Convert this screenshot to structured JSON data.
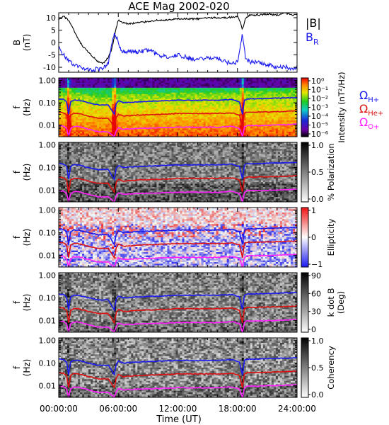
{
  "chart_data": {
    "type": "line",
    "title": "ACE Mag 2002-020",
    "xlabel": "Time (UT)",
    "x_ticks": [
      "00:00:00",
      "06:00:00",
      "12:00:00",
      "18:00:00",
      "24:00:00"
    ],
    "x_tick_hours": [
      0,
      6,
      12,
      18,
      24
    ],
    "xlim_hours": [
      0,
      24
    ],
    "panels": [
      {
        "name": "field",
        "ylabel_top": "B",
        "ylabel_bottom": "(nT)",
        "ylim": [
          -12,
          12
        ],
        "y_ticks": [
          10,
          5,
          0,
          -5,
          -10
        ],
        "legend": [
          {
            "label": "|B|",
            "color": "#000000"
          },
          {
            "label": "B",
            "sub": "R",
            "color": "#1a1aee"
          }
        ],
        "series": [
          {
            "color": "#000000",
            "x": [
              0,
              0.5,
              1,
              1.5,
              2,
              2.5,
              3,
              3.5,
              4,
              4.5,
              5,
              5.3,
              5.6,
              5.8,
              6,
              6.5,
              7,
              8,
              9,
              10,
              11,
              12,
              13,
              14,
              15,
              16,
              17,
              18,
              18.3,
              18.5,
              18.8,
              19.2,
              20,
              21,
              22,
              23,
              23.5,
              24
            ],
            "y": [
              9,
              10.5,
              9,
              5,
              1,
              -2,
              -4,
              -6,
              -8,
              -8.5,
              -6,
              -3,
              2,
              6,
              9,
              8,
              7.5,
              8,
              8.5,
              9,
              9,
              9.5,
              9.5,
              9.5,
              10,
              10,
              10,
              10.5,
              8,
              5,
              10,
              11,
              11,
              11.5,
              11,
              12,
              11,
              11.5
            ]
          },
          {
            "color": "#1a1aee",
            "x": [
              0,
              0.5,
              1,
              1.5,
              2,
              2.5,
              3,
              3.5,
              4,
              4.5,
              5,
              5.3,
              5.6,
              5.8,
              6,
              6.3,
              6.6,
              7,
              8,
              9,
              10,
              11,
              12,
              13,
              14,
              15,
              16,
              17,
              18,
              18.3,
              18.5,
              18.8,
              19.2,
              20,
              21,
              22,
              23,
              23.5,
              24
            ],
            "y": [
              -2,
              -5,
              -7,
              -9,
              -10,
              -10.5,
              -11,
              -11,
              -10.5,
              -10.5,
              -8,
              -2,
              4,
              2,
              0,
              -3,
              -4,
              -3.5,
              -4,
              -3,
              -5,
              -6,
              -5,
              -6,
              -7,
              -6,
              -6.5,
              -8,
              -8,
              -2,
              4,
              -6,
              -8,
              -8,
              -9,
              -10,
              -10,
              -11,
              -10
            ]
          }
        ]
      },
      {
        "name": "intensity",
        "kind": "spectrogram",
        "ylabel_top": "f",
        "ylabel_bottom": "(Hz)",
        "ylim": [
          0.003,
          1.3
        ],
        "y_ticks": [
          "1.00",
          "0.10",
          "0.01"
        ],
        "y_tick_values": [
          1,
          0.1,
          0.01
        ],
        "colorbar": {
          "label": "Intensity (nT²/Hz)",
          "ticks": [
            "10⁰",
            "10⁻¹",
            "10⁻²",
            "10⁻³",
            "10⁻⁴",
            "10⁻⁵",
            "10⁻⁶"
          ],
          "palette": "rainbow"
        },
        "legend": [
          {
            "label": "Ω",
            "sub": "H+",
            "color": "#1a1aee"
          },
          {
            "label": "Ω",
            "sub": "He+",
            "color": "#dd1111"
          },
          {
            "label": "Ω",
            "sub": "O+",
            "color": "#ff22ff"
          }
        ]
      },
      {
        "name": "polarization",
        "kind": "spectrogram",
        "ylabel_top": "f",
        "ylabel_bottom": "(Hz)",
        "ylim": [
          0.003,
          1.3
        ],
        "y_ticks": [
          "1.00",
          "0.10",
          "0.01"
        ],
        "y_tick_values": [
          1,
          0.1,
          0.01
        ],
        "colorbar": {
          "label": "% Polarization",
          "ticks": [
            "1.0",
            "0.5",
            "0.0"
          ],
          "palette": "gray"
        }
      },
      {
        "name": "ellipticity",
        "kind": "spectrogram",
        "ylabel_top": "f",
        "ylabel_bottom": "(Hz)",
        "ylim": [
          0.003,
          1.3
        ],
        "y_ticks": [
          "1.00",
          "0.10",
          "0.01"
        ],
        "y_tick_values": [
          1,
          0.1,
          0.01
        ],
        "colorbar": {
          "label": "Ellipticity",
          "ticks": [
            "1",
            "0",
            "−1"
          ],
          "palette": "bwr"
        }
      },
      {
        "name": "kdotb",
        "kind": "spectrogram",
        "ylabel_top": "f",
        "ylabel_bottom": "(Hz)",
        "ylim": [
          0.003,
          1.3
        ],
        "y_ticks": [
          "1.00",
          "0.10",
          "0.01"
        ],
        "y_tick_values": [
          1,
          0.1,
          0.01
        ],
        "colorbar": {
          "label": "k dot B",
          "label2": "(Deg)",
          "ticks": [
            "90",
            "60",
            "30",
            "0"
          ],
          "palette": "gray"
        }
      },
      {
        "name": "coherency",
        "kind": "spectrogram",
        "ylabel_top": "f",
        "ylabel_bottom": "(Hz)",
        "ylim": [
          0.003,
          1.3
        ],
        "y_ticks": [
          "1.00",
          "0.10",
          "0.01"
        ],
        "y_tick_values": [
          1,
          0.1,
          0.01
        ],
        "colorbar": {
          "label": "Coherency",
          "ticks": [
            "1.0",
            "0.5",
            "0.0"
          ],
          "palette": "gray"
        }
      }
    ],
    "gyrofrequency_series": [
      {
        "name": "Ω H+",
        "color": "#1a1aee",
        "x": [
          0,
          0.5,
          0.8,
          1,
          1.2,
          1.5,
          2,
          3,
          4,
          5,
          5.6,
          5.8,
          6,
          6.5,
          8,
          10,
          12,
          14,
          16,
          17.5,
          18.2,
          18.5,
          18.7,
          19,
          20,
          22,
          24
        ],
        "y": [
          0.15,
          0.14,
          0.11,
          0.03,
          0.11,
          0.13,
          0.13,
          0.1,
          0.08,
          0.08,
          0.03,
          0.09,
          0.12,
          0.1,
          0.11,
          0.12,
          0.13,
          0.13,
          0.13,
          0.14,
          0.11,
          0.03,
          0.13,
          0.15,
          0.15,
          0.16,
          0.17
        ]
      },
      {
        "name": "Ω He+",
        "color": "#dd1111",
        "x": [
          0,
          0.5,
          0.8,
          1,
          1.2,
          1.5,
          2,
          3,
          4,
          5,
          5.6,
          5.8,
          6,
          6.5,
          8,
          10,
          12,
          14,
          16,
          17.5,
          18.2,
          18.5,
          18.7,
          19,
          20,
          22,
          24
        ],
        "y": [
          0.038,
          0.035,
          0.028,
          0.008,
          0.028,
          0.033,
          0.033,
          0.025,
          0.02,
          0.02,
          0.008,
          0.022,
          0.03,
          0.025,
          0.028,
          0.03,
          0.033,
          0.033,
          0.033,
          0.035,
          0.028,
          0.008,
          0.033,
          0.038,
          0.038,
          0.04,
          0.043
        ]
      },
      {
        "name": "Ω O+",
        "color": "#ff22ff",
        "x": [
          0,
          0.5,
          0.8,
          1,
          1.2,
          1.5,
          2,
          3,
          4,
          5,
          5.6,
          5.8,
          6,
          6.5,
          8,
          10,
          12,
          14,
          16,
          17.5,
          18.2,
          18.5,
          18.7,
          19,
          20,
          22,
          24
        ],
        "y": [
          0.0095,
          0.009,
          0.007,
          0.003,
          0.007,
          0.0085,
          0.0085,
          0.0065,
          0.005,
          0.005,
          0.003,
          0.0055,
          0.0075,
          0.0065,
          0.007,
          0.0075,
          0.008,
          0.008,
          0.008,
          0.0088,
          0.007,
          0.003,
          0.008,
          0.0095,
          0.0095,
          0.01,
          0.011
        ]
      }
    ]
  }
}
